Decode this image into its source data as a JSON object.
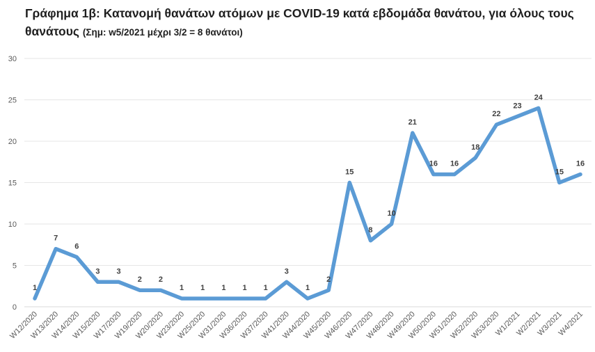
{
  "title": {
    "main": "Γράφημα 1β: Κατανομή θανάτων ατόμων με COVID-19 κατά εβδομάδα θανάτου, για όλους τους θανάτους",
    "note": "(Σημ: w5/2021 μέχρι 3/2 = 8 θανάτοι)"
  },
  "chart_data": {
    "type": "line",
    "title": "Γράφημα 1β: Κατανομή θανάτων ατόμων με COVID-19 κατά εβδομάδα θανάτου, για όλους τους θανάτους (Σημ: w5/2021 μέχρι 3/2 = 8 θανάτοι)",
    "xlabel": "",
    "ylabel": "",
    "ylim": [
      0,
      30
    ],
    "yticks": [
      0,
      5,
      10,
      15,
      20,
      25,
      30
    ],
    "grid": true,
    "legend": "none",
    "color": "#5B9BD5",
    "categories": [
      "W12/2020",
      "W13/2020",
      "W14/2020",
      "W15/2020",
      "W17/2020",
      "W19/2020",
      "W20/2020",
      "W23/2020",
      "W25/2020",
      "W31/2020",
      "W36/2020",
      "W37/2020",
      "W41/2020",
      "W44/2020",
      "W45/2020",
      "W46/2020",
      "W47/2020",
      "W48/2020",
      "W49/2020",
      "W50/2020",
      "W51/2020",
      "W52/2020",
      "W53/2020",
      "W1/2021",
      "W2/2021",
      "W3/2021",
      "W4/2021"
    ],
    "values": [
      1,
      7,
      6,
      3,
      3,
      2,
      2,
      1,
      1,
      1,
      1,
      1,
      3,
      1,
      2,
      15,
      8,
      10,
      21,
      16,
      16,
      18,
      22,
      23,
      24,
      15,
      16
    ]
  }
}
